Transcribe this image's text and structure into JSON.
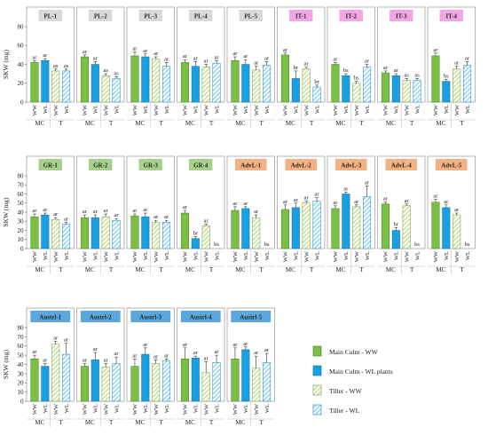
{
  "series_styles": [
    {
      "name": "Main Culm - WW",
      "fill": "#7ac143",
      "stroke": "#4a7a2a",
      "pattern": "solid"
    },
    {
      "name": "Main Culm - WL plants",
      "fill": "#1aa0e0",
      "stroke": "#0f6e9e",
      "pattern": "solid"
    },
    {
      "name": "Tiller - WW",
      "fill": "#b5d77a",
      "stroke": "#6f9a3a",
      "pattern": "hatch"
    },
    {
      "name": "Tiller - WL",
      "fill": "#6fc7f0",
      "stroke": "#1b86bf",
      "pattern": "hatch"
    }
  ],
  "tag_colors": {
    "PL": "#d9d9d9",
    "IT": "#f2a6e6",
    "GR": "#a8d08d",
    "AdvL": "#f4b183",
    "Austrl": "#5ba8df"
  },
  "ylabel": "SKW (mg)",
  "x_tick_labels": [
    "WW",
    "WL",
    "WW",
    "WL"
  ],
  "group_labels": [
    "MC",
    "T"
  ],
  "chart_data": [
    {
      "type": "bar",
      "row": 1,
      "ylim": [
        0,
        80
      ],
      "yticks": [
        0,
        20,
        40,
        60,
        80
      ],
      "panels": [
        {
          "genotype": "PL-1",
          "tag": "PL",
          "values": [
            42,
            44,
            33,
            33
          ],
          "err": [
            2,
            2,
            2,
            2
          ],
          "labels": [
            "ar",
            "ar",
            "as",
            "as"
          ]
        },
        {
          "genotype": "PL-2",
          "tag": "PL",
          "values": [
            48,
            40,
            28,
            25
          ],
          "err": [
            2,
            3,
            2,
            2
          ],
          "labels": [
            "ar",
            "ar",
            "as",
            "as"
          ]
        },
        {
          "genotype": "PL-3",
          "tag": "PL",
          "values": [
            49,
            48,
            46,
            38
          ],
          "err": [
            4,
            3,
            2,
            4
          ],
          "labels": [
            "ar",
            "ar",
            "ar",
            "ar"
          ]
        },
        {
          "genotype": "PL-4",
          "tag": "PL",
          "values": [
            42,
            38,
            37,
            41
          ],
          "err": [
            3,
            5,
            3,
            3
          ],
          "labels": [
            "ar",
            "ar",
            "ar",
            "ar"
          ]
        },
        {
          "genotype": "PL-5",
          "tag": "PL",
          "values": [
            44,
            40,
            34,
            39
          ],
          "err": [
            4,
            5,
            4,
            4
          ],
          "labels": [
            "ar",
            "ar",
            "ar",
            "ar"
          ]
        },
        {
          "genotype": "IT-1",
          "tag": "IT",
          "values": [
            50,
            25,
            35,
            16
          ],
          "err": [
            2,
            8,
            2,
            2
          ],
          "labels": [
            "ar",
            "br",
            "ar",
            "br"
          ]
        },
        {
          "genotype": "IT-2",
          "tag": "IT",
          "values": [
            40,
            28,
            20,
            37
          ],
          "err": [
            2,
            2,
            2,
            3
          ],
          "labels": [
            "ar",
            "bs",
            "bs",
            "ar"
          ]
        },
        {
          "genotype": "IT-3",
          "tag": "IT",
          "values": [
            31,
            28,
            23,
            23
          ],
          "err": [
            2,
            2,
            2,
            2
          ],
          "labels": [
            "ar",
            "ar",
            "as",
            "as"
          ]
        },
        {
          "genotype": "IT-4",
          "tag": "IT",
          "values": [
            49,
            22,
            35,
            39
          ],
          "err": [
            3,
            2,
            3,
            4
          ],
          "labels": [
            "ar",
            "bs",
            "ar",
            "ar"
          ]
        }
      ]
    },
    {
      "type": "bar",
      "row": 2,
      "ylim": [
        0,
        80
      ],
      "yticks": [
        0,
        10,
        20,
        30,
        40,
        50,
        60,
        70,
        80
      ],
      "panels": [
        {
          "genotype": "GR-1",
          "tag": "GR",
          "values": [
            35,
            37,
            32,
            27
          ],
          "err": [
            3,
            2,
            2,
            2
          ],
          "labels": [
            "ar",
            "ar",
            "ar",
            "ar"
          ]
        },
        {
          "genotype": "GR-2",
          "tag": "GR",
          "values": [
            34,
            34,
            35,
            31
          ],
          "err": [
            3,
            3,
            3,
            2
          ],
          "labels": [
            "ar",
            "ar",
            "ar",
            "ar"
          ]
        },
        {
          "genotype": "GR-3",
          "tag": "GR",
          "values": [
            36,
            35,
            29,
            29
          ],
          "err": [
            2,
            4,
            2,
            2
          ],
          "labels": [
            "ar",
            "ar",
            "ar",
            "ar"
          ]
        },
        {
          "genotype": "GR-4",
          "tag": "GR",
          "values": [
            39,
            11,
            25,
            0
          ],
          "err": [
            3,
            2,
            2,
            0
          ],
          "labels": [
            "ar",
            "br",
            "ar",
            "bs"
          ]
        },
        {
          "genotype": "AdvL-1",
          "tag": "AdvL",
          "values": [
            42,
            44,
            34,
            0
          ],
          "err": [
            4,
            2,
            3,
            0
          ],
          "labels": [
            "ar",
            "ar",
            "ar",
            "bs"
          ]
        },
        {
          "genotype": "AdvL-2",
          "tag": "AdvL",
          "values": [
            43,
            45,
            50,
            52
          ],
          "err": [
            5,
            5,
            2,
            4
          ],
          "labels": [
            "ar",
            "ar",
            "ar",
            "ar"
          ]
        },
        {
          "genotype": "AdvL-3",
          "tag": "AdvL",
          "values": [
            44,
            60,
            46,
            57
          ],
          "err": [
            3,
            2,
            2,
            12
          ],
          "labels": [
            "ar",
            "ar",
            "ar",
            "ar"
          ]
        },
        {
          "genotype": "AdvL-4",
          "tag": "AdvL",
          "values": [
            49,
            20,
            47,
            0
          ],
          "err": [
            2,
            3,
            2,
            0
          ],
          "labels": [
            "ar",
            "br",
            "ar",
            "bs"
          ]
        },
        {
          "genotype": "AdvL-5",
          "tag": "AdvL",
          "values": [
            51,
            45,
            37,
            0
          ],
          "err": [
            3,
            3,
            2,
            0
          ],
          "labels": [
            "ar",
            "ar",
            "ar",
            "bs"
          ]
        }
      ]
    },
    {
      "type": "bar",
      "row": 3,
      "ylim": [
        0,
        80
      ],
      "yticks": [
        0,
        10,
        20,
        30,
        40,
        50,
        60,
        70,
        80
      ],
      "panels": [
        {
          "genotype": "Austrl-1",
          "tag": "Austrl",
          "values": [
            46,
            38,
            62,
            51
          ],
          "err": [
            4,
            3,
            3,
            12
          ],
          "labels": [
            "ar",
            "ar",
            "ar",
            "ar"
          ]
        },
        {
          "genotype": "Austrl-2",
          "tag": "Austrl",
          "values": [
            38,
            45,
            37,
            41
          ],
          "err": [
            3,
            8,
            4,
            7
          ],
          "labels": [
            "ar",
            "ar",
            "ar",
            "ar"
          ]
        },
        {
          "genotype": "Austrl-3",
          "tag": "Austrl",
          "values": [
            38,
            51,
            41,
            44
          ],
          "err": [
            8,
            7,
            4,
            2
          ],
          "labels": [
            "ar",
            "ar",
            "ar",
            "ar"
          ]
        },
        {
          "genotype": "Austrl-4",
          "tag": "Austrl",
          "values": [
            46,
            47,
            31,
            42
          ],
          "err": [
            12,
            2,
            12,
            8
          ],
          "labels": [
            "ar",
            "ar",
            "ar",
            "ar"
          ]
        },
        {
          "genotype": "Austrl-5",
          "tag": "Austrl",
          "values": [
            46,
            56,
            36,
            42
          ],
          "err": [
            12,
            3,
            13,
            10
          ],
          "labels": [
            "ar",
            "ar",
            "ar",
            "ar"
          ]
        }
      ]
    }
  ]
}
